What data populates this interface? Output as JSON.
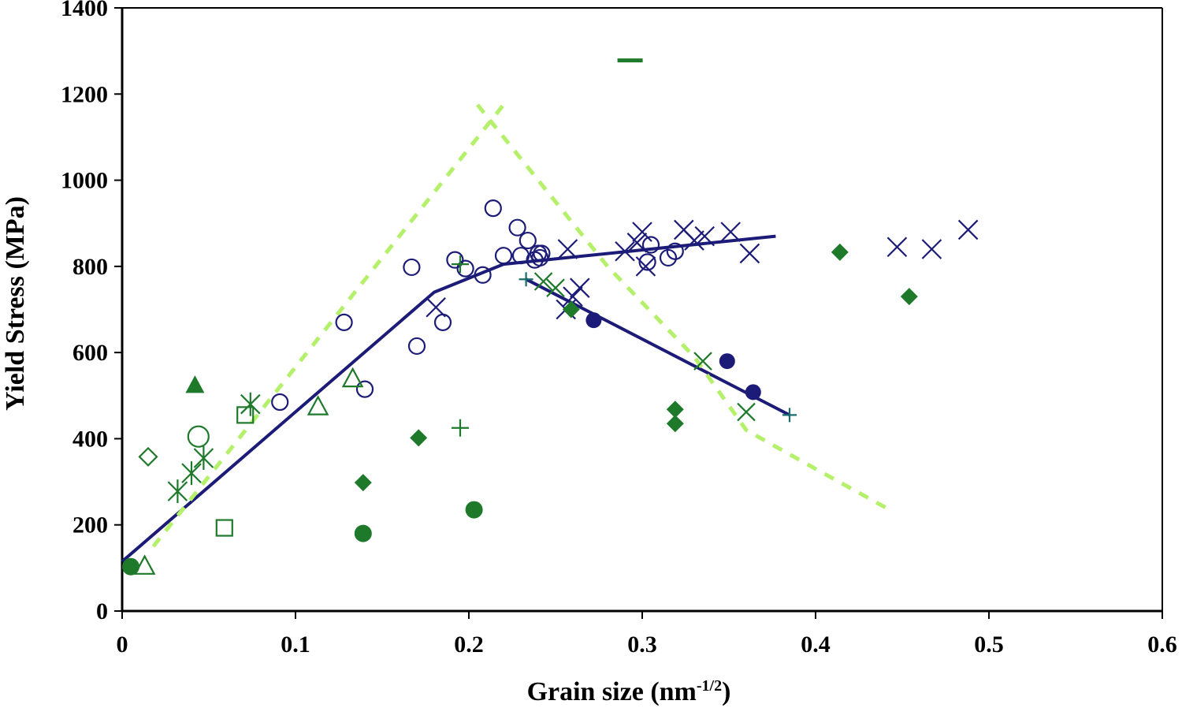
{
  "chart_data": {
    "type": "scatter",
    "title": "",
    "xlabel": "Grain size (nm",
    "xlabel_sup": "-1/2",
    "xlabel_end": ")",
    "ylabel": "Yield Stress (MPa)",
    "xlim": [
      0,
      0.6
    ],
    "ylim": [
      0,
      1400
    ],
    "x_ticks": [
      0,
      0.1,
      0.2,
      0.3,
      0.4,
      0.5,
      0.6
    ],
    "x_tick_labels": [
      "0",
      "0.1",
      "0.2",
      "0.3",
      "0.4",
      "0.5",
      "0.6"
    ],
    "y_ticks": [
      0,
      200,
      400,
      600,
      800,
      1000,
      1200,
      1400
    ],
    "y_tick_labels": [
      "0",
      "200",
      "400",
      "600",
      "800",
      "1000",
      "1200",
      "1400"
    ],
    "grid": false,
    "colors": {
      "navy": "#1c1c78",
      "green": "#1e7a2a",
      "teal": "#1a6b6b",
      "lime": "#b4f06a",
      "axis": "#000000"
    },
    "lines": [
      {
        "name": "navy fit (rising + plateau)",
        "style": "solid",
        "color": "navy",
        "points": [
          [
            0,
            115
          ],
          [
            0.18,
            740
          ],
          [
            0.22,
            805
          ],
          [
            0.377,
            870
          ]
        ]
      },
      {
        "name": "navy fit (falling)",
        "style": "solid",
        "color": "navy",
        "points": [
          [
            0.233,
            770
          ],
          [
            0.385,
            455
          ]
        ]
      },
      {
        "name": "lime dashed (rising)",
        "style": "dashed",
        "color": "lime",
        "points": [
          [
            0.018,
            150
          ],
          [
            0.22,
            1175
          ]
        ]
      },
      {
        "name": "lime dashed (falling)",
        "style": "dashed",
        "color": "lime",
        "points": [
          [
            0.205,
            1175
          ],
          [
            0.28,
            800
          ],
          [
            0.33,
            590
          ],
          [
            0.36,
            420
          ],
          [
            0.4,
            330
          ],
          [
            0.445,
            230
          ]
        ]
      }
    ],
    "series": [
      {
        "name": "navy open circles",
        "marker": "circle-open",
        "color": "navy",
        "size": 10,
        "x": [
          0.091,
          0.128,
          0.14,
          0.167,
          0.17,
          0.185,
          0.192,
          0.198,
          0.208,
          0.214,
          0.22,
          0.228,
          0.23,
          0.234,
          0.238,
          0.24,
          0.241,
          0.242,
          0.303,
          0.305,
          0.315,
          0.319
        ],
        "y": [
          485,
          670,
          515,
          798,
          615,
          670,
          815,
          795,
          780,
          935,
          825,
          890,
          825,
          860,
          815,
          830,
          820,
          830,
          810,
          850,
          820,
          835
        ]
      },
      {
        "name": "navy crosses",
        "marker": "x",
        "color": "navy",
        "size": 12,
        "x": [
          0.181,
          0.256,
          0.257,
          0.26,
          0.264,
          0.29,
          0.297,
          0.3,
          0.302,
          0.324,
          0.33,
          0.336,
          0.351,
          0.362,
          0.447,
          0.467,
          0.488
        ],
        "y": [
          705,
          700,
          840,
          730,
          750,
          835,
          855,
          880,
          800,
          885,
          860,
          870,
          880,
          830,
          845,
          840,
          885
        ]
      },
      {
        "name": "navy filled circles",
        "marker": "circle-filled",
        "color": "navy",
        "size": 10,
        "x": [
          0.272,
          0.349,
          0.364
        ],
        "y": [
          675,
          580,
          508
        ]
      },
      {
        "name": "teal plus",
        "marker": "plus",
        "color": "teal",
        "size": 9,
        "x": [
          0.233,
          0.385
        ],
        "y": [
          770,
          455
        ]
      },
      {
        "name": "green crosses",
        "marker": "x",
        "color": "green",
        "size": 11,
        "x": [
          0.243,
          0.25,
          0.335,
          0.36
        ],
        "y": [
          765,
          750,
          580,
          462
        ]
      },
      {
        "name": "green plus",
        "marker": "plus",
        "color": "green",
        "size": 11,
        "x": [
          0.195,
          0.195
        ],
        "y": [
          425,
          805
        ]
      },
      {
        "name": "green asterisks",
        "marker": "asterisk",
        "color": "green",
        "size": 12,
        "x": [
          0.032,
          0.04,
          0.047,
          0.074
        ],
        "y": [
          278,
          320,
          355,
          480
        ]
      },
      {
        "name": "green open circles",
        "marker": "circle-open",
        "color": "green",
        "size": 13,
        "x": [
          0.044
        ],
        "y": [
          405
        ]
      },
      {
        "name": "green open diamonds",
        "marker": "diamond-open",
        "color": "green",
        "size": 11,
        "x": [
          0.015
        ],
        "y": [
          358
        ]
      },
      {
        "name": "green open squares",
        "marker": "square-open",
        "color": "green",
        "size": 10,
        "x": [
          0.059,
          0.071
        ],
        "y": [
          193,
          455
        ]
      },
      {
        "name": "green open triangles",
        "marker": "triangle-open",
        "color": "green",
        "size": 12,
        "x": [
          0.013,
          0.113,
          0.133
        ],
        "y": [
          105,
          475,
          540
        ]
      },
      {
        "name": "green filled triangles",
        "marker": "triangle-filled",
        "color": "green",
        "size": 12,
        "x": [
          0.042
        ],
        "y": [
          525
        ]
      },
      {
        "name": "green filled circles",
        "marker": "circle-filled",
        "color": "green",
        "size": 11,
        "x": [
          0.005,
          0.139,
          0.203
        ],
        "y": [
          103,
          180,
          235
        ]
      },
      {
        "name": "green filled diamonds",
        "marker": "diamond-filled",
        "color": "green",
        "size": 11,
        "x": [
          0.139,
          0.171,
          0.259,
          0.319,
          0.319,
          0.414,
          0.454
        ],
        "y": [
          298,
          402,
          700,
          435,
          468,
          833,
          730
        ]
      },
      {
        "name": "green dash",
        "marker": "dash",
        "color": "green",
        "size": 16,
        "x": [
          0.293
        ],
        "y": [
          1278
        ]
      }
    ]
  }
}
